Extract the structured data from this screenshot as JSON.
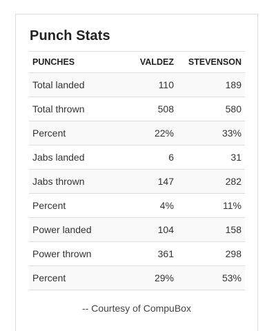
{
  "widget": {
    "title": "Punch Stats",
    "columns": [
      "PUNCHES",
      "VALDEZ",
      "STEVENSON"
    ],
    "rows": [
      {
        "label": "Total landed",
        "valdez": "110",
        "stevenson": "189"
      },
      {
        "label": "Total thrown",
        "valdez": "508",
        "stevenson": "580"
      },
      {
        "label": "Percent",
        "valdez": "22%",
        "stevenson": "33%"
      },
      {
        "label": "Jabs landed",
        "valdez": "6",
        "stevenson": "31"
      },
      {
        "label": "Jabs thrown",
        "valdez": "147",
        "stevenson": "282"
      },
      {
        "label": "Percent",
        "valdez": "4%",
        "stevenson": "11%"
      },
      {
        "label": "Power landed",
        "valdez": "104",
        "stevenson": "158"
      },
      {
        "label": "Power thrown",
        "valdez": "361",
        "stevenson": "298"
      },
      {
        "label": "Percent",
        "valdez": "29%",
        "stevenson": "53%"
      }
    ],
    "footer": "-- Courtesy of CompuBox"
  },
  "colors": {
    "border": "#dddddd",
    "stripe": "#f9f9f9",
    "text": "#333333",
    "heading": "#222222"
  }
}
